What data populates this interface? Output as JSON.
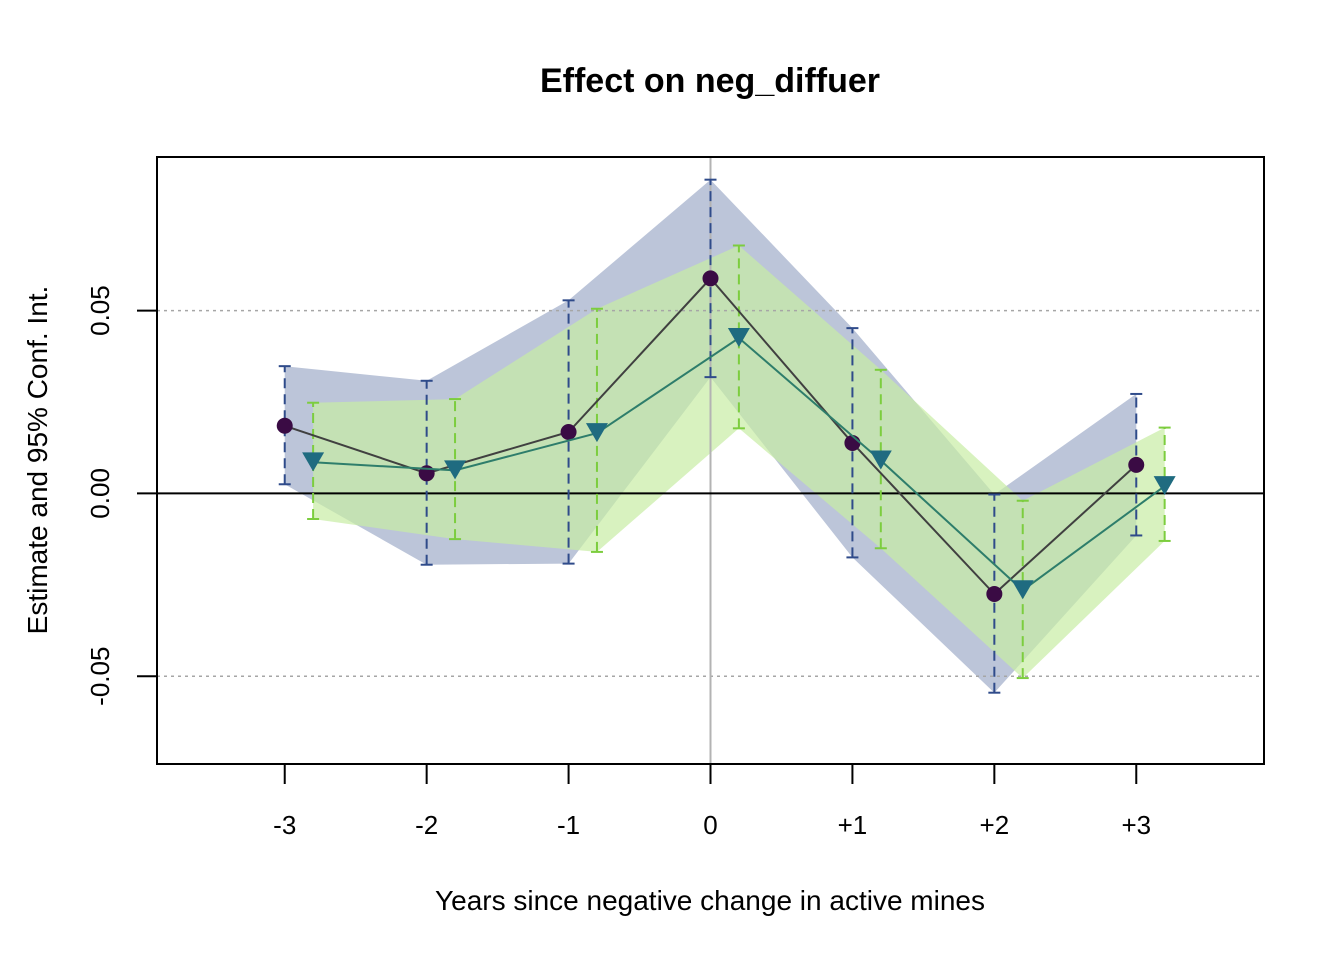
{
  "chart_data": {
    "type": "line",
    "title": "Effect on neg_diffuer",
    "xlabel": "Years since negative change in active mines",
    "ylabel": "Estimate and 95% Conf. Int.",
    "x_categories": [
      "-3",
      "-2",
      "-1",
      "0",
      "+1",
      "+2",
      "+3"
    ],
    "y_ticks": [
      -0.05,
      0.0,
      0.05
    ],
    "y_tick_labels": [
      "-0.05",
      "0.00",
      "0.05"
    ],
    "xlim": [
      -3.9,
      3.9
    ],
    "ylim": [
      -0.074,
      0.092
    ],
    "reference_lines": {
      "horizontal": 0,
      "vertical": 0,
      "dotted_grid_y": [
        -0.05,
        0.05
      ]
    },
    "series": [
      {
        "marker": "circle",
        "color": "#3a0b44",
        "line_color": "#404040",
        "ci_color": "#2f4b8a",
        "band_color": "#bcc5d9",
        "x_offset": 0,
        "estimate": [
          0.0185,
          0.0055,
          0.0168,
          0.0588,
          0.0138,
          -0.0275,
          0.0078
        ],
        "ci_low": [
          0.0025,
          -0.0195,
          -0.0192,
          0.0318,
          -0.0175,
          -0.0545,
          -0.0115
        ],
        "ci_high": [
          0.0348,
          0.0308,
          0.0528,
          0.0858,
          0.0452,
          -0.0003,
          0.0272
        ]
      },
      {
        "marker": "triangle-down",
        "color": "#1f6b80",
        "line_color": "#2e7d6b",
        "ci_color": "#7ccd3e",
        "band_color": "#c8eca4",
        "x_offset": 0.2,
        "estimate": [
          0.0085,
          0.0063,
          0.0165,
          0.0425,
          0.009,
          -0.0265,
          0.002
        ],
        "ci_low": [
          -0.007,
          -0.0125,
          -0.016,
          0.0178,
          -0.015,
          -0.0505,
          -0.013
        ],
        "ci_high": [
          0.0248,
          0.0258,
          0.0505,
          0.0678,
          0.0338,
          -0.002,
          0.018
        ]
      }
    ]
  }
}
